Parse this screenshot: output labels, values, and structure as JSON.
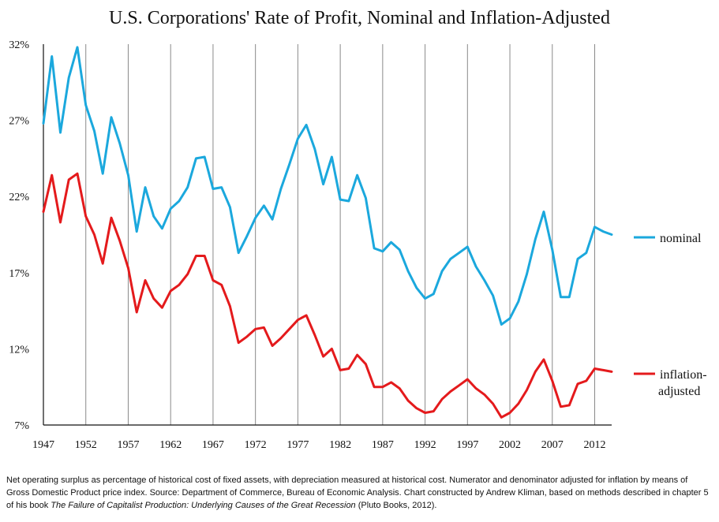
{
  "chart_data": {
    "type": "line",
    "title": "U.S. Corporations' Rate of Profit, Nominal and Inflation-Adjusted",
    "xlabel": "",
    "ylabel": "",
    "xlim": [
      1947,
      2014
    ],
    "ylim": [
      7,
      32
    ],
    "x_ticks": [
      1947,
      1952,
      1957,
      1962,
      1967,
      1972,
      1977,
      1982,
      1987,
      1992,
      1997,
      2002,
      2007,
      2012
    ],
    "x_tick_labels": [
      "1947",
      "1952",
      "1957",
      "1962",
      "1967",
      "1972",
      "1977",
      "1982",
      "1987",
      "1992",
      "1997",
      "2002",
      "2007",
      "2012"
    ],
    "y_ticks": [
      7,
      12,
      17,
      22,
      27,
      32
    ],
    "y_tick_labels": [
      "7%",
      "12%",
      "17%",
      "22%",
      "27%",
      "32%"
    ],
    "grid": "vertical",
    "legend_placement": "right",
    "x": [
      1947,
      1948,
      1949,
      1950,
      1951,
      1952,
      1953,
      1954,
      1955,
      1956,
      1957,
      1958,
      1959,
      1960,
      1961,
      1962,
      1963,
      1964,
      1965,
      1966,
      1967,
      1968,
      1969,
      1970,
      1971,
      1972,
      1973,
      1974,
      1975,
      1976,
      1977,
      1978,
      1979,
      1980,
      1981,
      1982,
      1983,
      1984,
      1985,
      1986,
      1987,
      1988,
      1989,
      1990,
      1991,
      1992,
      1993,
      1994,
      1995,
      1996,
      1997,
      1998,
      1999,
      2000,
      2001,
      2002,
      2003,
      2004,
      2005,
      2006,
      2007,
      2008,
      2009,
      2010,
      2011,
      2012,
      2013,
      2014
    ],
    "series": [
      {
        "name": "nominal",
        "color": "#1ba8dd",
        "values": [
          26.8,
          31.2,
          26.2,
          29.8,
          31.8,
          28.0,
          26.3,
          23.5,
          27.2,
          25.5,
          23.4,
          19.7,
          22.6,
          20.7,
          19.9,
          21.2,
          21.7,
          22.6,
          24.5,
          24.6,
          22.5,
          22.6,
          21.3,
          18.3,
          19.4,
          20.6,
          21.4,
          20.5,
          22.5,
          24.1,
          25.8,
          26.7,
          25.1,
          22.8,
          24.6,
          21.8,
          21.7,
          23.4,
          21.9,
          18.6,
          18.4,
          19.0,
          18.5,
          17.1,
          16.0,
          15.3,
          15.6,
          17.1,
          17.9,
          18.3,
          18.7,
          17.4,
          16.5,
          15.5,
          13.6,
          14.0,
          15.1,
          16.9,
          19.2,
          21.0,
          18.5,
          15.4,
          15.4,
          17.9,
          18.3,
          20.0,
          19.7,
          19.5
        ]
      },
      {
        "name": "inflation-adjusted",
        "color": "#e41a1c",
        "values": [
          21.0,
          23.4,
          20.3,
          23.1,
          23.5,
          20.7,
          19.5,
          17.6,
          20.6,
          19.1,
          17.3,
          14.4,
          16.5,
          15.3,
          14.7,
          15.8,
          16.2,
          16.9,
          18.1,
          18.1,
          16.5,
          16.2,
          14.8,
          12.4,
          12.8,
          13.3,
          13.4,
          12.2,
          12.7,
          13.3,
          13.9,
          14.2,
          12.9,
          11.5,
          12.0,
          10.6,
          10.7,
          11.6,
          11.0,
          9.5,
          9.5,
          9.8,
          9.4,
          8.6,
          8.1,
          7.8,
          7.9,
          8.7,
          9.2,
          9.6,
          10.0,
          9.4,
          9.0,
          8.4,
          7.5,
          7.8,
          8.4,
          9.3,
          10.5,
          11.3,
          9.9,
          8.2,
          8.3,
          9.7,
          9.9,
          10.7,
          10.6,
          10.5
        ]
      }
    ]
  },
  "legend": {
    "nominal_label": "nominal",
    "inflation_label_line1": "inflation-",
    "inflation_label_line2": "adjusted"
  },
  "footnote": {
    "text": "Net operating surplus as percentage of historical cost of fixed assets, with depreciation measured at historical cost. Numerator and denominator adjusted for inflation by means of Gross Domestic Product price index. Source: Department of Commerce, Bureau of Economic Analysis. Chart constructed by Andrew Kliman, based on methods described in chapter 5 of his book ",
    "book_title": "The Failure of Capitalist Production: Underlying Causes of the Great Recession",
    "suffix": " (Pluto Books, 2012)."
  }
}
